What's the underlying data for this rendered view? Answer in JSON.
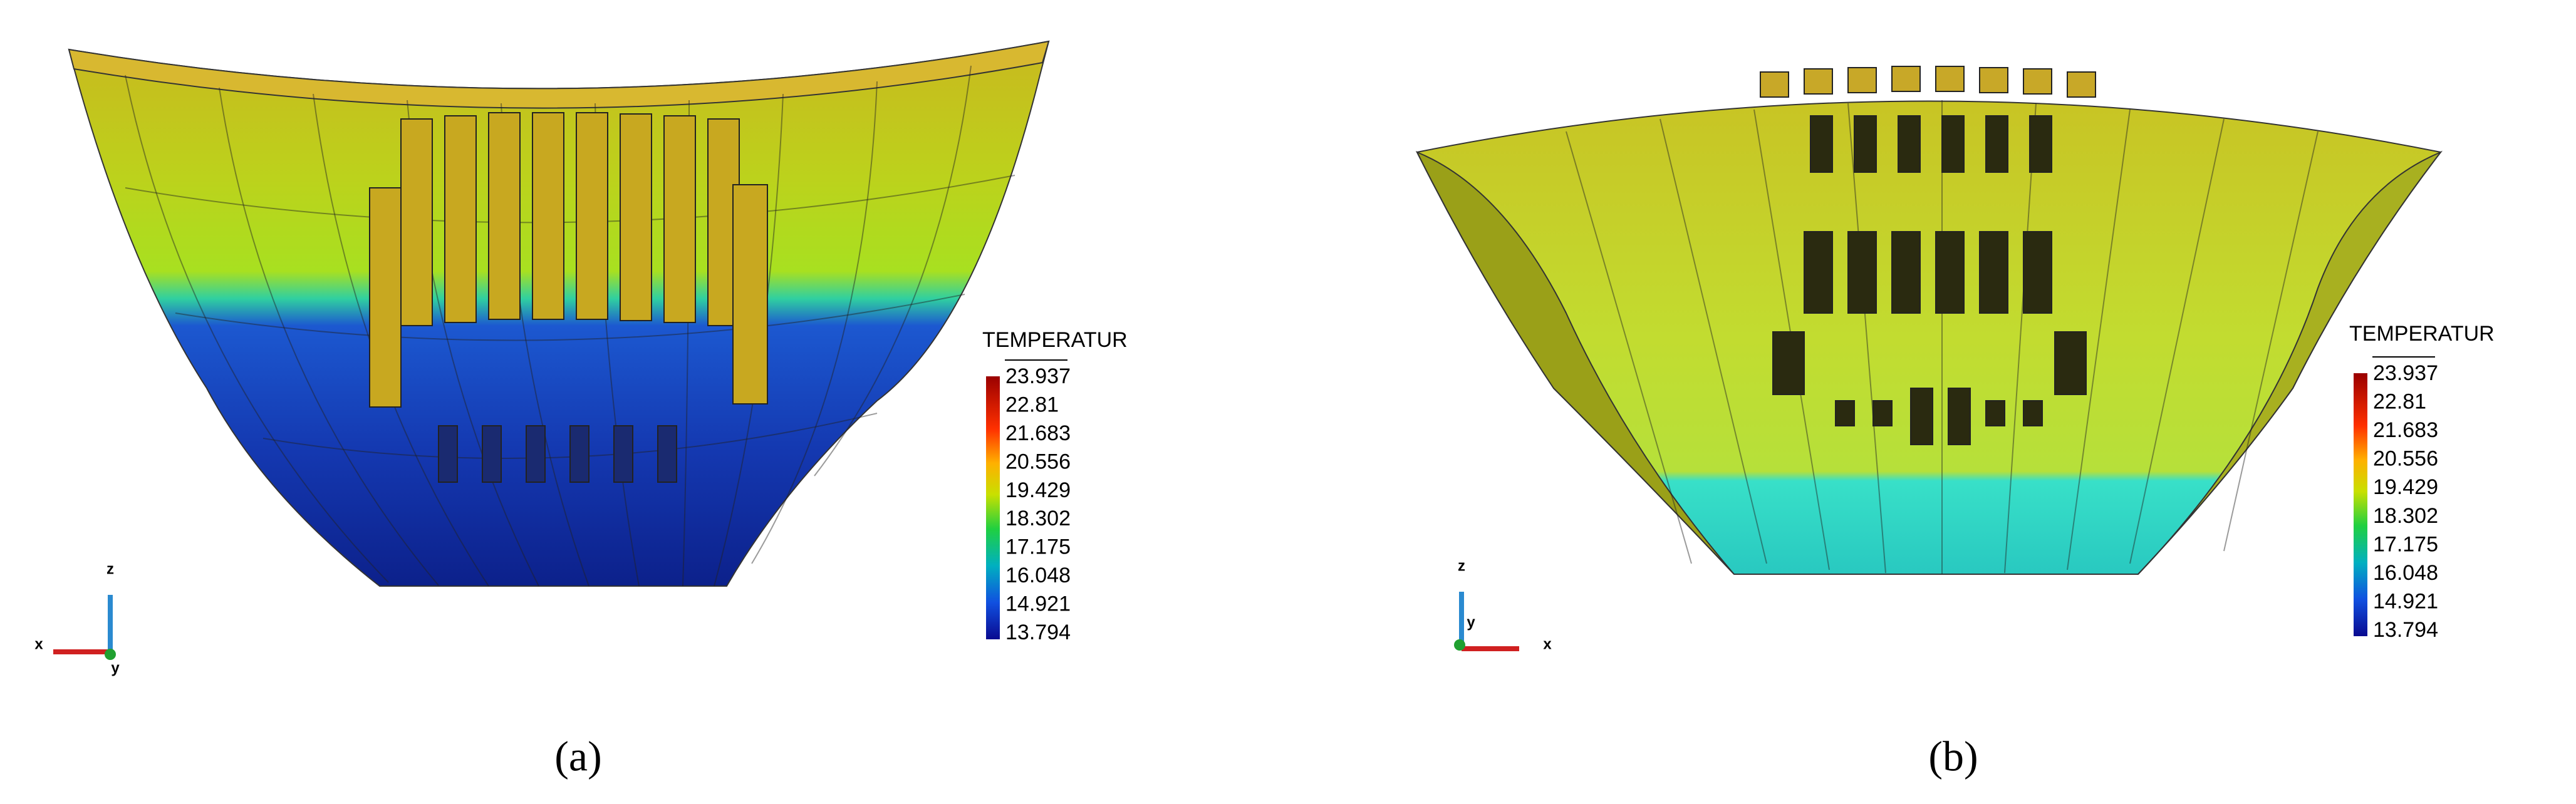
{
  "panels": [
    {
      "label": "(a)",
      "legend": {
        "title": "TEMPERATUR",
        "ticks": [
          23.937,
          22.81,
          21.683,
          20.556,
          19.429,
          18.302,
          17.175,
          16.048,
          14.921,
          13.794
        ]
      },
      "triad": {
        "up": "z",
        "left": "x",
        "out": "y"
      }
    },
    {
      "label": "(b)",
      "legend": {
        "title": "TEMPERATUR",
        "ticks": [
          23.937,
          22.81,
          21.683,
          20.556,
          19.429,
          18.302,
          17.175,
          16.048,
          14.921,
          13.794
        ]
      },
      "triad": {
        "up": "z",
        "out": "y",
        "right": "x"
      }
    }
  ]
}
